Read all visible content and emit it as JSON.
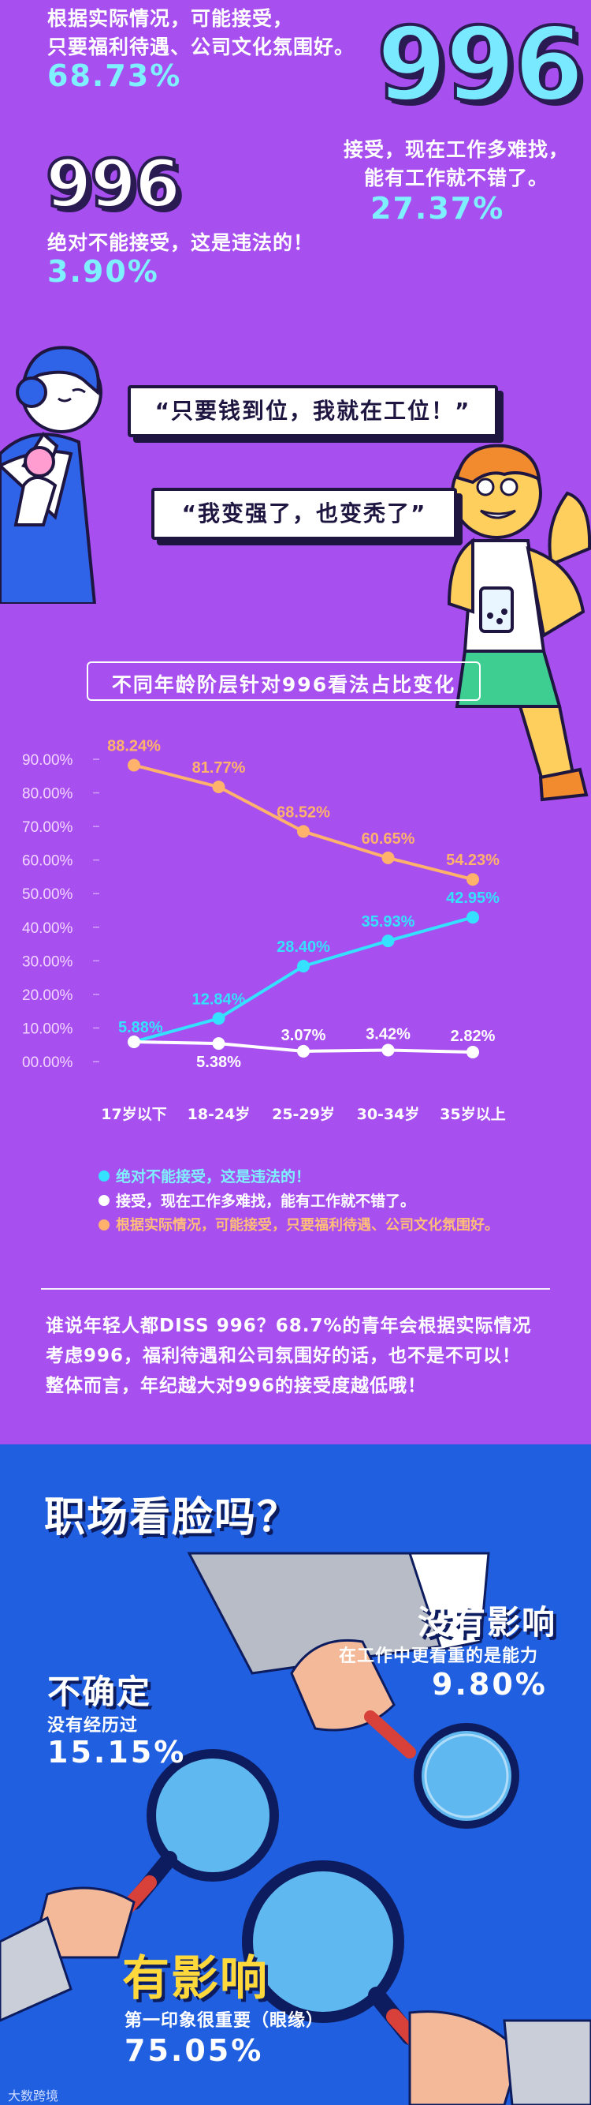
{
  "top": {
    "opt_a_line1": "根据实际情况，可能接受，",
    "opt_a_line2": "只要福利待遇、公司文化氛围好。",
    "opt_a_pct": "68.73%",
    "opt_b_big": "996",
    "opt_b_line1": "接受，现在工作多难找，",
    "opt_b_line2": "能有工作就不错了。",
    "opt_b_pct": "27.37%",
    "opt_c_big": "996",
    "opt_c_line1": "绝对不能接受，这是违法的！",
    "opt_c_pct": "3.90%"
  },
  "bubbles": {
    "b1": "“只要钱到位，我就在工位！”",
    "b2": "“我变强了，也变秃了”"
  },
  "chart_data": {
    "type": "line",
    "title": "不同年龄阶层针对996看法占比变化",
    "categories": [
      "17岁以下",
      "18-24岁",
      "25-29岁",
      "30-34岁",
      "35岁以上"
    ],
    "yticks": [
      "90.00%",
      "80.00%",
      "70.00%",
      "60.00%",
      "50.00%",
      "40.00%",
      "30.00%",
      "20.00%",
      "10.00%",
      "00.00%"
    ],
    "ylim": [
      0,
      90
    ],
    "series": [
      {
        "name": "绝对不能接受，这是违法的！",
        "color": "#34e2ff",
        "values": [
          5.88,
          12.84,
          28.4,
          35.93,
          42.95
        ],
        "labels": [
          "5.88%",
          "12.84%",
          "28.40%",
          "35.93%",
          "42.95%"
        ]
      },
      {
        "name": "接受，现在工作多难找，能有工作就不错了。",
        "color": "#ffffff",
        "values": [
          5.88,
          5.38,
          3.07,
          3.42,
          2.82
        ],
        "labels": [
          "",
          "5.38%",
          "3.07%",
          "3.42%",
          "2.82%"
        ]
      },
      {
        "name": "根据实际情况，可能接受，只要福利待遇、公司文化氛围好。",
        "color": "#ffb26b",
        "values": [
          88.24,
          81.77,
          68.52,
          60.65,
          54.23
        ],
        "labels": [
          "88.24%",
          "81.77%",
          "68.52%",
          "60.65%",
          "54.23%"
        ]
      }
    ]
  },
  "paragraph": {
    "line1": "谁说年轻人都DISS 996？68.7%的青年会根据实际情况",
    "line2": "考虑996，福利待遇和公司氛围好的话，也不是不可以！",
    "line3": "整体而言，年纪越大对996的接受度越低哦！"
  },
  "blue": {
    "title": "职场看脸吗？",
    "none_head": "没有影响",
    "none_sub": "在工作中更看重的是能力",
    "none_pct": "9.80%",
    "unsure_head": "不确定",
    "unsure_sub": "没有经历过",
    "unsure_pct": "15.15%",
    "yes_head": "有影响",
    "yes_sub": "第一印象很重要（眼缘）",
    "yes_pct": "75.05%",
    "footer": "大数跨境"
  }
}
